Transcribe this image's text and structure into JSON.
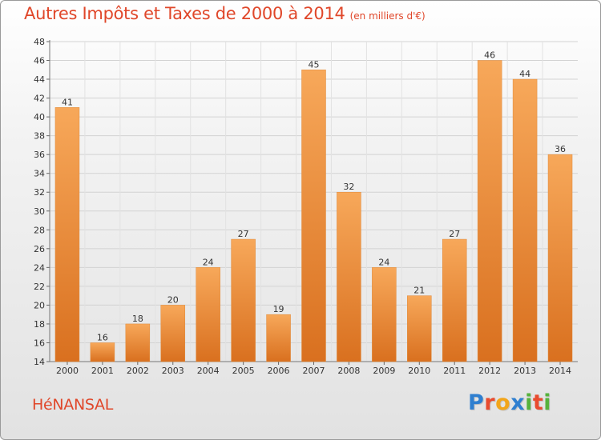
{
  "title": "Autres Impôts et Taxes de 2000 à 2014",
  "subtitle": "(en milliers d'€)",
  "city": "HéNANSAL",
  "logo": {
    "letters": [
      "P",
      "r",
      "o",
      "x",
      "i",
      "t",
      "i"
    ],
    "colors": [
      "#2f7fd0",
      "#e94b2e",
      "#f2a51a",
      "#2f7fd0",
      "#56b23c",
      "#e94b2e",
      "#56b23c"
    ]
  },
  "colors": {
    "title": "#e0472a",
    "bar_top": "#f7a85a",
    "bar_bottom": "#d9701f"
  },
  "chart_data": {
    "type": "bar",
    "title": "Autres Impôts et Taxes de 2000 à 2014",
    "subtitle": "(en milliers d'€)",
    "categories": [
      "2000",
      "2001",
      "2002",
      "2003",
      "2004",
      "2005",
      "2006",
      "2007",
      "2008",
      "2009",
      "2010",
      "2011",
      "2012",
      "2013",
      "2014"
    ],
    "values": [
      41,
      16,
      18,
      20,
      24,
      27,
      19,
      45,
      32,
      24,
      21,
      27,
      46,
      44,
      36
    ],
    "ylim": [
      14,
      48
    ],
    "yticks": [
      14,
      16,
      18,
      20,
      22,
      24,
      26,
      28,
      30,
      32,
      34,
      36,
      38,
      40,
      42,
      44,
      46,
      48
    ],
    "xlabel": "",
    "ylabel": "",
    "grid": true
  }
}
